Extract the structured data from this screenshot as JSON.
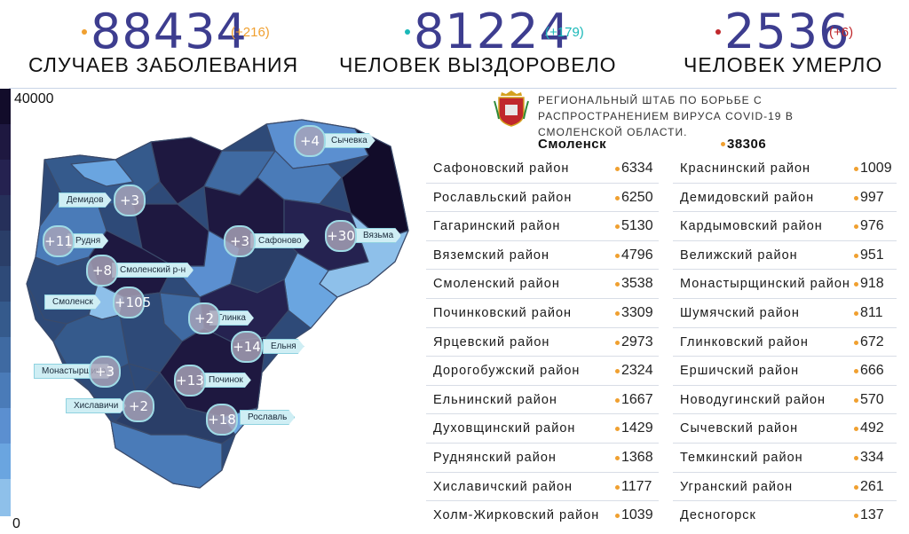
{
  "stats": [
    {
      "value": "88434",
      "delta": "(+216)",
      "label": "Случаев заболевания",
      "dot_color": "#f0a030",
      "delta_color": "#f0a030"
    },
    {
      "value": "81224",
      "delta": "(+179)",
      "label": "Человек выздоровело",
      "dot_color": "#1ab8b8",
      "delta_color": "#1ab8b8"
    },
    {
      "value": "2536",
      "delta": "(+6)",
      "label": "Человек умерло",
      "dot_color": "#c0282c",
      "delta_color": "#c0282c"
    }
  ],
  "scale": {
    "max": "40000",
    "min": "0"
  },
  "header": {
    "hq_text": "Региональный штаб по борьбе с распространением вируса COVID-19 в Смоленской области."
  },
  "capital": {
    "name": "Смоленск",
    "value": "38306"
  },
  "districts_left": [
    {
      "name": "Сафоновский район",
      "value": "6334"
    },
    {
      "name": "Рославльский район",
      "value": "6250"
    },
    {
      "name": "Гагаринский район",
      "value": "5130"
    },
    {
      "name": "Вяземский район",
      "value": "4796"
    },
    {
      "name": "Смоленский район",
      "value": "3538"
    },
    {
      "name": "Починковский район",
      "value": "3309"
    },
    {
      "name": "Ярцевский район",
      "value": "2973"
    },
    {
      "name": "Дорогобужский район",
      "value": "2324"
    },
    {
      "name": "Ельнинский район",
      "value": "1667"
    },
    {
      "name": "Духовщинский район",
      "value": "1429"
    },
    {
      "name": "Руднянский район",
      "value": "1368"
    },
    {
      "name": "Хиславичский район",
      "value": "1177"
    },
    {
      "name": "Холм-Жирковский район",
      "value": "1039"
    }
  ],
  "districts_right": [
    {
      "name": "Краснинский район",
      "value": "1009"
    },
    {
      "name": "Демидовский район",
      "value": "997"
    },
    {
      "name": "Кардымовский район",
      "value": "976"
    },
    {
      "name": "Велижский район",
      "value": "951"
    },
    {
      "name": "Монастырщинский район",
      "value": "918"
    },
    {
      "name": "Шумячский район",
      "value": "811"
    },
    {
      "name": "Глинковский район",
      "value": "672"
    },
    {
      "name": "Ершичский район",
      "value": "666"
    },
    {
      "name": "Новодугинский район",
      "value": "570"
    },
    {
      "name": "Сычевский район",
      "value": "492"
    },
    {
      "name": "Темкинский район",
      "value": "334"
    },
    {
      "name": "Угранский район",
      "value": "261"
    },
    {
      "name": "Десногорск",
      "value": "137"
    }
  ],
  "map_labels": [
    {
      "name": "Сычевка",
      "delta": "+4"
    },
    {
      "name": "Демидов",
      "delta": "+3"
    },
    {
      "name": "Рудня",
      "delta": "+11"
    },
    {
      "name": "Сафоново",
      "delta": "+3"
    },
    {
      "name": "Вязьма",
      "delta": "+30"
    },
    {
      "name": "Смоленский р-н",
      "delta": "+8"
    },
    {
      "name": "Смоленск",
      "delta": "+105"
    },
    {
      "name": "Глинка",
      "delta": "+2"
    },
    {
      "name": "Ельня",
      "delta": "+14"
    },
    {
      "name": "Монастырщина",
      "delta": "+3"
    },
    {
      "name": "Починок",
      "delta": "+13"
    },
    {
      "name": "Хиславичи",
      "delta": "+2"
    },
    {
      "name": "Рославль",
      "delta": "+18"
    }
  ],
  "colors": {
    "dark": "#1e1840",
    "mid": "#2e4a78",
    "light": "#5b8fd0",
    "pale": "#8ec0ea",
    "accent": "#f0a030"
  }
}
